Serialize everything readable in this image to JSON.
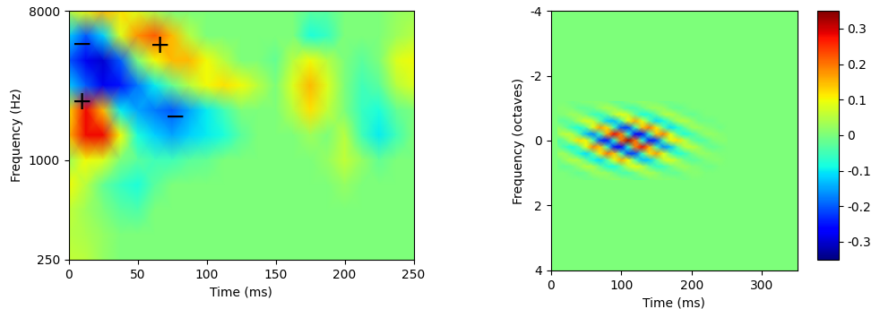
{
  "chart_data": [
    {
      "type": "heatmap",
      "x_label": "Time (ms)",
      "y_label": "Frequency (Hz)",
      "log": "y",
      "x": [
        0,
        12.5,
        25,
        37.5,
        50,
        62.5,
        75,
        87.5,
        100,
        112.5,
        125,
        137.5,
        150,
        162.5,
        175,
        187.5,
        200,
        212.5,
        225,
        237.5,
        250
      ],
      "y": [
        8000,
        5657,
        4000,
        2828,
        2000,
        1414,
        1000,
        707,
        500,
        354,
        250
      ],
      "cells": [
        [
          0.05,
          0.1,
          0.15,
          0.12,
          0.08,
          0.04,
          0.0,
          0.0,
          0.0,
          0.0,
          0.0,
          0.0,
          0.0,
          0.0,
          -0.03,
          -0.03,
          0.0,
          0.0,
          0.0,
          0.02,
          0.03
        ],
        [
          -0.12,
          -0.2,
          -0.12,
          0.08,
          0.18,
          0.22,
          0.15,
          0.05,
          0.0,
          0.0,
          0.0,
          0.0,
          0.0,
          0.0,
          -0.08,
          -0.06,
          0.0,
          0.0,
          0.0,
          0.03,
          0.05
        ],
        [
          -0.2,
          -0.28,
          -0.3,
          -0.2,
          0.0,
          0.1,
          0.15,
          0.15,
          0.1,
          0.05,
          0.0,
          0.0,
          -0.02,
          0.05,
          0.1,
          0.05,
          0.0,
          -0.03,
          0.0,
          0.08,
          0.1
        ],
        [
          -0.12,
          -0.2,
          -0.28,
          -0.25,
          -0.18,
          -0.1,
          -0.02,
          0.05,
          0.1,
          0.12,
          0.1,
          0.05,
          0.0,
          0.08,
          0.15,
          0.08,
          0.0,
          -0.05,
          -0.03,
          0.05,
          0.08
        ],
        [
          0.12,
          0.28,
          0.15,
          -0.1,
          -0.15,
          -0.18,
          -0.2,
          -0.15,
          -0.1,
          -0.05,
          0.0,
          0.0,
          0.0,
          0.05,
          0.12,
          0.06,
          0.0,
          -0.06,
          -0.08,
          -0.02,
          0.0
        ],
        [
          0.15,
          0.28,
          0.28,
          0.1,
          -0.08,
          -0.12,
          -0.15,
          -0.12,
          -0.1,
          -0.08,
          -0.03,
          0.0,
          0.0,
          0.0,
          0.03,
          0.0,
          0.05,
          -0.05,
          -0.1,
          -0.05,
          0.0
        ],
        [
          0.03,
          0.1,
          0.08,
          0.0,
          -0.03,
          -0.05,
          -0.05,
          -0.03,
          -0.02,
          0.0,
          0.0,
          0.0,
          0.0,
          0.0,
          0.0,
          0.02,
          0.06,
          0.02,
          -0.02,
          0.0,
          0.0
        ],
        [
          0.1,
          0.05,
          -0.02,
          -0.06,
          -0.08,
          -0.03,
          0.0,
          0.0,
          0.0,
          0.0,
          0.0,
          0.0,
          0.0,
          0.0,
          0.0,
          0.0,
          0.02,
          0.0,
          0.0,
          0.0,
          0.0
        ],
        [
          0.06,
          0.03,
          0.0,
          -0.03,
          -0.04,
          0.0,
          0.0,
          0.0,
          0.0,
          0.0,
          0.0,
          0.0,
          0.0,
          0.0,
          0.0,
          0.0,
          0.0,
          0.0,
          0.0,
          0.0,
          0.0
        ],
        [
          0.05,
          0.04,
          0.02,
          0.0,
          0.0,
          0.0,
          0.0,
          0.0,
          0.0,
          0.0,
          0.0,
          0.0,
          0.0,
          0.0,
          0.0,
          0.0,
          0.0,
          0.0,
          0.0,
          0.0,
          0.0
        ],
        [
          0.06,
          0.05,
          0.02,
          0.0,
          0.0,
          0.0,
          0.0,
          0.0,
          0.0,
          0.0,
          0.0,
          0.0,
          0.0,
          0.0,
          0.0,
          0.0,
          0.0,
          0.0,
          0.0,
          0.0,
          0.0
        ]
      ],
      "clim": [
        -0.35,
        0.35
      ],
      "xlim": [
        0,
        250
      ],
      "xticks": [
        0,
        50,
        100,
        150,
        200,
        250
      ],
      "ylim": [
        250,
        8000
      ],
      "yticks": [
        250,
        1000,
        8000
      ],
      "annotations": [
        {
          "x": 10,
          "y": 2250,
          "text": "+"
        },
        {
          "x": 66,
          "y": 4900,
          "text": "+"
        },
        {
          "x": 10,
          "y": 5000,
          "text": "−"
        },
        {
          "x": 77,
          "y": 1820,
          "text": "−"
        }
      ]
    },
    {
      "type": "heatmap",
      "x_label": "Time (ms)",
      "y_label": "Frequency (octaves)",
      "x": [
        10,
        20,
        30,
        40,
        50,
        60,
        70,
        80,
        90,
        100,
        110,
        120,
        130,
        140,
        150,
        160,
        170,
        180,
        190,
        200,
        210,
        220,
        230,
        240,
        250
      ],
      "y": [
        -1.2,
        -1.0,
        -0.8,
        -0.6,
        -0.4,
        -0.2,
        0,
        0.2,
        0.4,
        0.6,
        0.8,
        1.0,
        1.2
      ],
      "cells": [
        [
          0.0,
          0.0,
          -0.01,
          0.0,
          0.01,
          0.01,
          0.01,
          0.0,
          -0.02,
          -0.02,
          0.0,
          0.01,
          0.02,
          0.01,
          0.0,
          -0.01,
          -0.01,
          0.0,
          0.0,
          0.0,
          0.0,
          0.0,
          0.0,
          0.0,
          0.0
        ],
        [
          0.01,
          0.01,
          0.0,
          -0.02,
          -0.02,
          -0.01,
          0.02,
          0.04,
          0.03,
          -0.01,
          -0.04,
          -0.04,
          -0.01,
          0.02,
          0.03,
          0.02,
          -0.01,
          -0.02,
          -0.01,
          0.0,
          0.0,
          0.0,
          0.0,
          0.0,
          0.0
        ],
        [
          0.0,
          0.01,
          0.03,
          0.02,
          -0.01,
          -0.05,
          -0.06,
          -0.02,
          0.05,
          0.09,
          0.06,
          -0.02,
          -0.08,
          -0.07,
          -0.02,
          0.04,
          0.05,
          0.02,
          -0.01,
          -0.02,
          -0.01,
          0.0,
          0.0,
          0.0,
          0.0
        ],
        [
          -0.02,
          -0.03,
          -0.01,
          0.04,
          0.08,
          0.06,
          -0.03,
          -0.12,
          -0.13,
          -0.04,
          0.1,
          0.16,
          0.09,
          -0.03,
          -0.11,
          -0.09,
          -0.02,
          0.04,
          0.05,
          0.02,
          -0.01,
          -0.01,
          -0.01,
          0.0,
          0.0
        ],
        [
          0.02,
          -0.01,
          -0.06,
          -0.08,
          -0.03,
          0.09,
          0.17,
          0.12,
          -0.05,
          -0.21,
          -0.22,
          -0.05,
          0.14,
          0.2,
          0.11,
          -0.03,
          -0.11,
          -0.08,
          -0.02,
          0.03,
          0.03,
          0.01,
          0.0,
          -0.01,
          0.0
        ],
        [
          0.03,
          0.06,
          0.05,
          -0.03,
          -0.13,
          -0.17,
          -0.05,
          0.16,
          0.28,
          0.19,
          -0.07,
          -0.27,
          -0.25,
          -0.06,
          0.14,
          0.19,
          0.09,
          -0.03,
          -0.08,
          -0.05,
          -0.01,
          0.02,
          0.02,
          0.01,
          0.0
        ],
        [
          -0.04,
          -0.01,
          0.06,
          0.12,
          0.1,
          -0.04,
          -0.22,
          -0.25,
          -0.07,
          0.2,
          0.33,
          0.2,
          -0.07,
          -0.25,
          -0.22,
          -0.04,
          0.1,
          0.12,
          0.06,
          -0.01,
          -0.04,
          -0.03,
          0.0,
          0.01,
          0.01
        ],
        [
          -0.01,
          -0.05,
          -0.08,
          -0.03,
          0.09,
          0.19,
          0.14,
          -0.06,
          -0.25,
          -0.27,
          -0.07,
          0.19,
          0.28,
          0.16,
          -0.05,
          -0.17,
          -0.13,
          -0.03,
          0.05,
          0.06,
          0.03,
          -0.01,
          -0.02,
          -0.01,
          0.0
        ],
        [
          0.03,
          0.03,
          -0.02,
          -0.08,
          -0.11,
          -0.03,
          0.11,
          0.2,
          0.14,
          -0.05,
          -0.22,
          -0.21,
          -0.05,
          0.12,
          0.17,
          0.09,
          -0.03,
          -0.08,
          -0.06,
          -0.01,
          0.02,
          0.02,
          0.01,
          0.0,
          0.0
        ],
        [
          -0.01,
          0.02,
          0.05,
          0.04,
          -0.02,
          -0.09,
          -0.11,
          -0.03,
          0.09,
          0.16,
          0.1,
          -0.04,
          -0.13,
          -0.12,
          -0.03,
          0.06,
          0.08,
          0.04,
          -0.01,
          -0.03,
          -0.02,
          0.0,
          0.01,
          0.01,
          0.0
        ],
        [
          -0.01,
          -0.02,
          -0.01,
          0.02,
          0.05,
          0.04,
          -0.02,
          -0.07,
          -0.08,
          -0.02,
          0.06,
          0.09,
          0.05,
          -0.02,
          -0.06,
          -0.05,
          -0.01,
          0.02,
          0.03,
          0.01,
          0.0,
          -0.01,
          -0.01,
          0.0,
          0.0
        ],
        [
          0.0,
          0.0,
          -0.01,
          -0.02,
          -0.01,
          0.02,
          0.03,
          0.02,
          -0.01,
          -0.04,
          -0.04,
          -0.01,
          0.03,
          0.04,
          0.02,
          -0.01,
          -0.02,
          -0.02,
          0.0,
          0.01,
          0.01,
          0.0,
          0.0,
          0.0,
          0.0
        ],
        [
          0.0,
          0.0,
          0.0,
          0.0,
          -0.01,
          -0.01,
          0.0,
          0.01,
          0.02,
          0.01,
          0.0,
          -0.02,
          -0.02,
          0.0,
          0.01,
          0.01,
          0.01,
          0.0,
          -0.01,
          0.0,
          0.0,
          0.0,
          0.0,
          0.0,
          0.0
        ]
      ],
      "clim": [
        -0.35,
        0.35
      ],
      "colorbar_ticks": [
        -0.3,
        -0.2,
        -0.1,
        0,
        0.1,
        0.2,
        0.3
      ],
      "xlim": [
        0,
        350
      ],
      "xticks": [
        0,
        100,
        200,
        300
      ],
      "ylim": [
        4,
        -4
      ],
      "yticks": [
        -4,
        -2,
        0,
        2,
        4
      ]
    }
  ]
}
